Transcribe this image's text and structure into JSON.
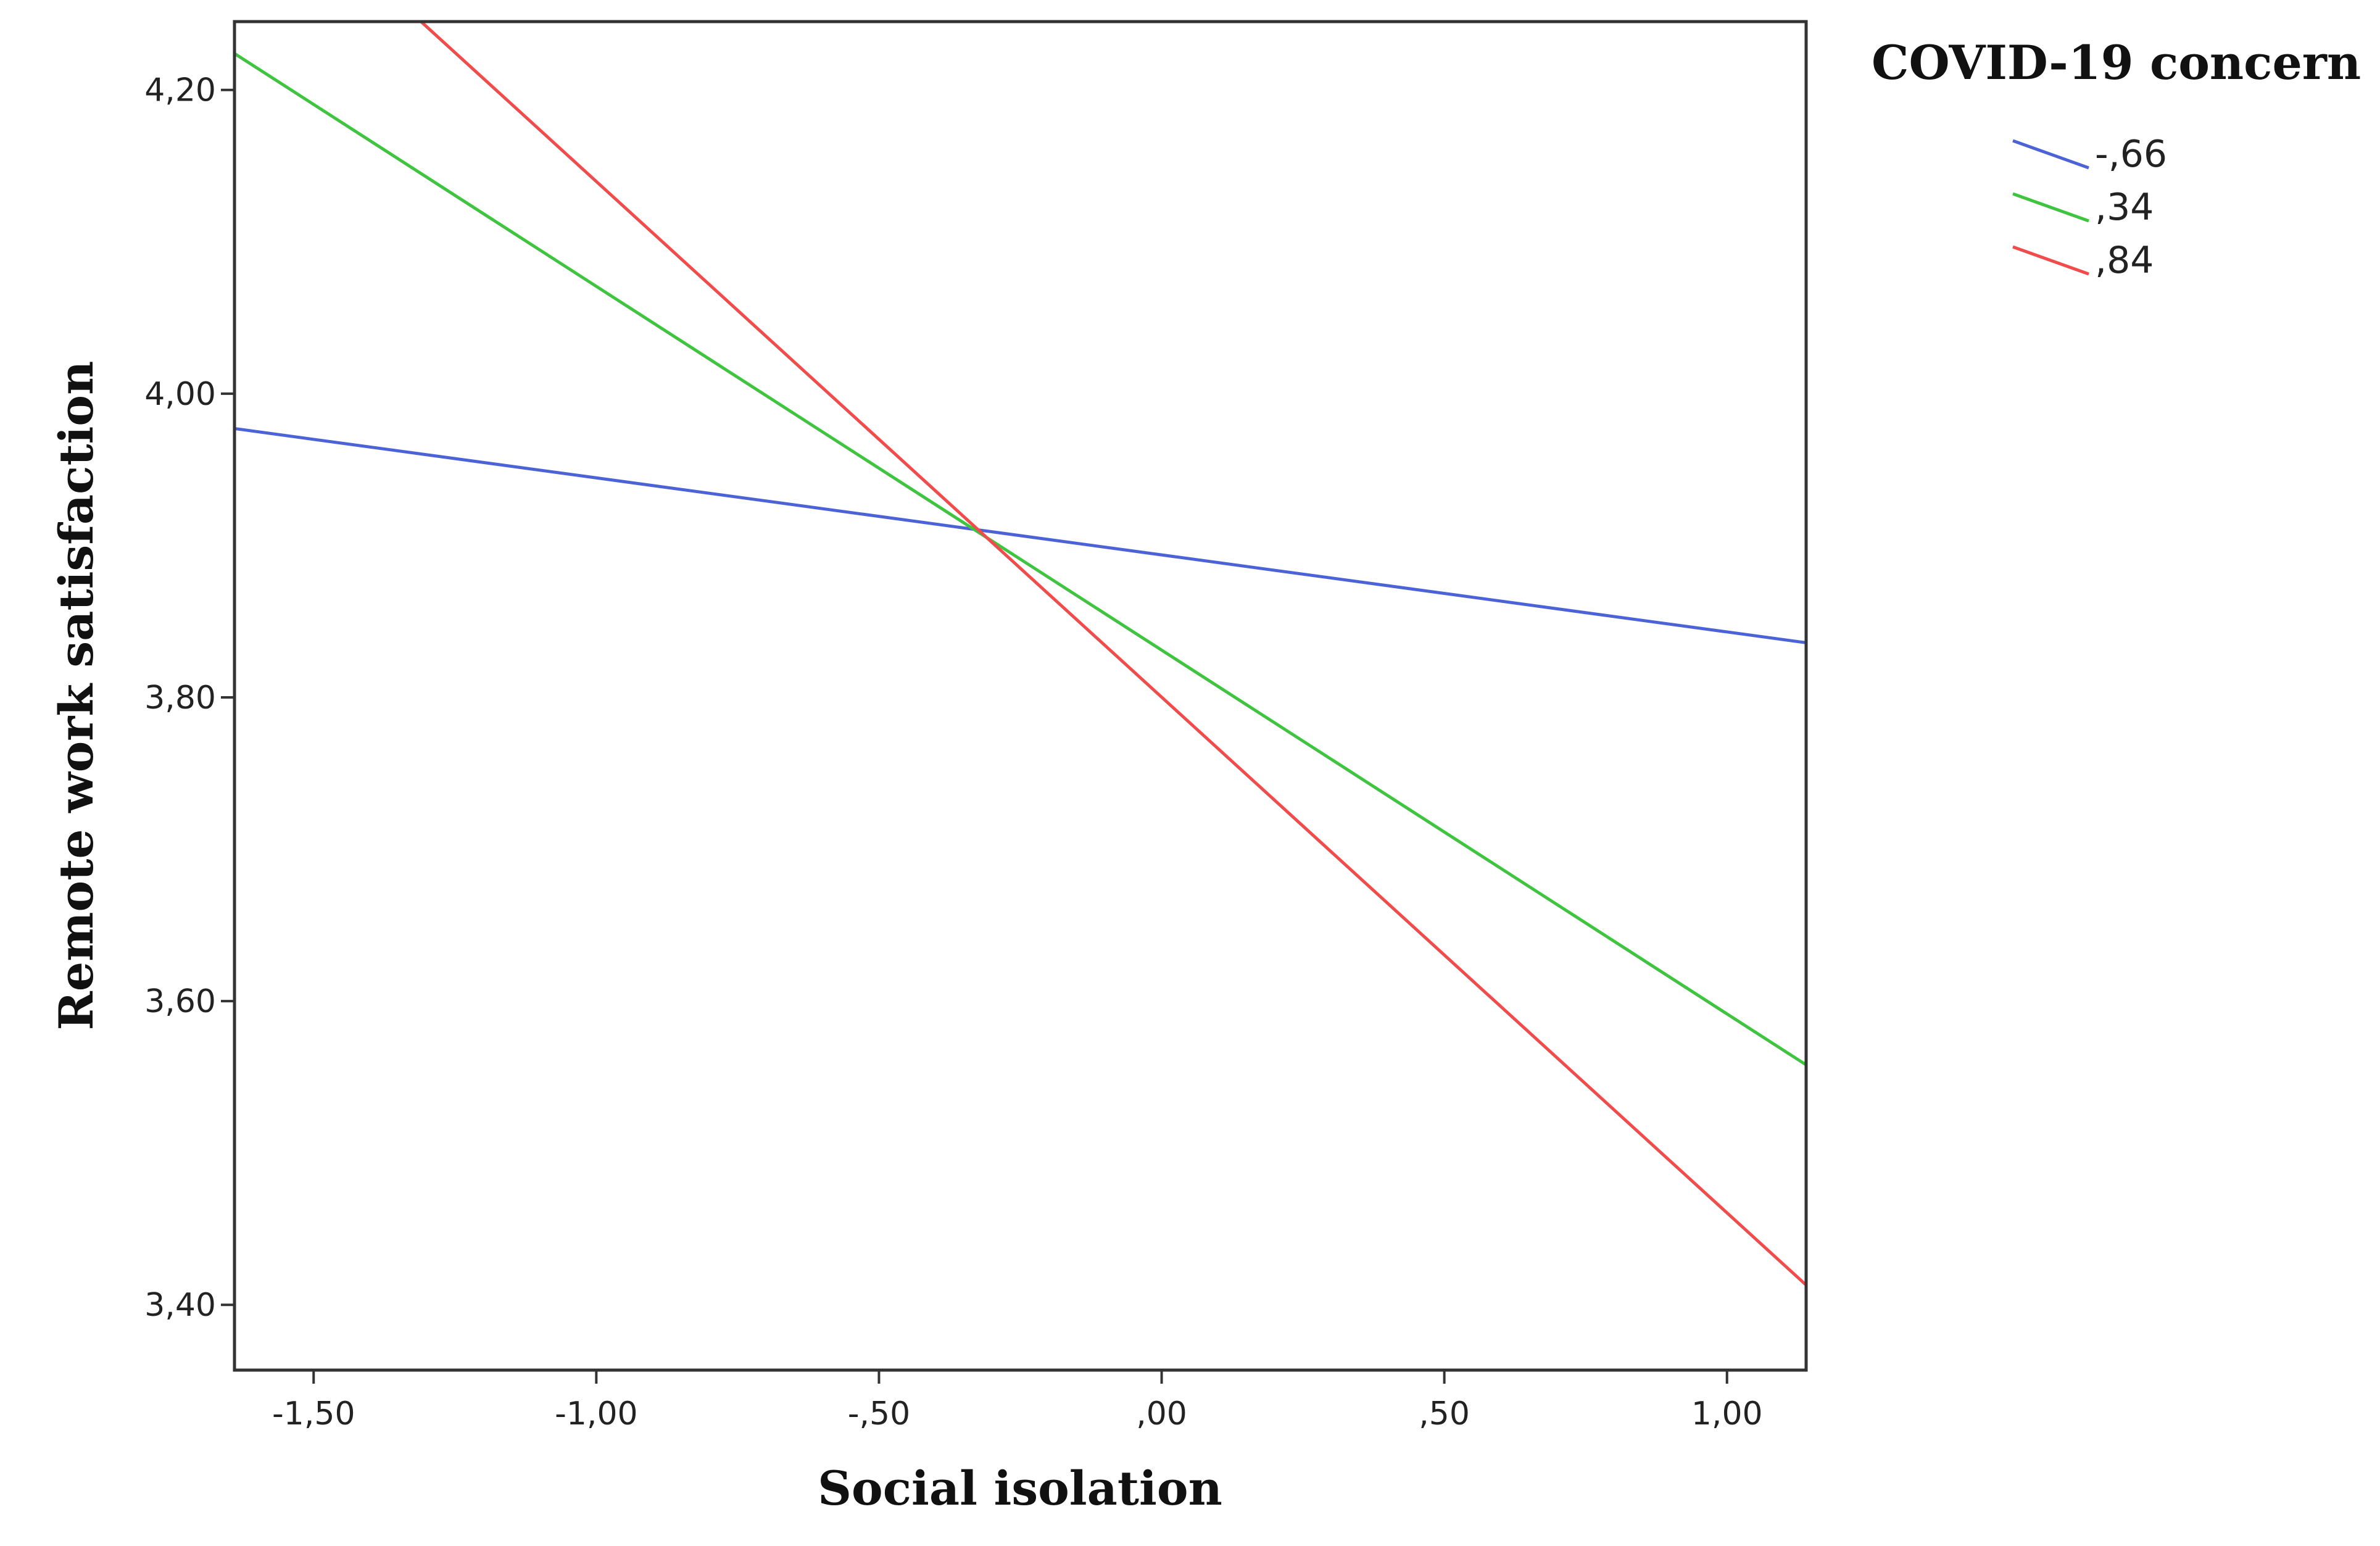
{
  "chart_data": {
    "type": "line",
    "title": "",
    "xlabel": "Social isolation",
    "ylabel": "Remote work satisfaction",
    "xlim": [
      -1.64,
      1.14
    ],
    "ylim": [
      3.357,
      4.245
    ],
    "xticks": [
      {
        "value": -1.5,
        "label": "-1,50"
      },
      {
        "value": -1.0,
        "label": "-1,00"
      },
      {
        "value": -0.5,
        "label": "-,50"
      },
      {
        "value": 0.0,
        "label": ",00"
      },
      {
        "value": 0.5,
        "label": ",50"
      },
      {
        "value": 1.0,
        "label": "1,00"
      }
    ],
    "yticks": [
      {
        "value": 3.4,
        "label": "3,40"
      },
      {
        "value": 3.6,
        "label": "3,60"
      },
      {
        "value": 3.8,
        "label": "3,80"
      },
      {
        "value": 4.0,
        "label": "4,00"
      },
      {
        "value": 4.2,
        "label": "4,20"
      }
    ],
    "grid": false,
    "legend": {
      "title": "COVID-19 concern",
      "placement": "top-right, outside plot"
    },
    "series": [
      {
        "name": "-,66",
        "color": "#4b63d6",
        "x": [
          -1.64,
          1.14
        ],
        "y": [
          3.977,
          3.836
        ]
      },
      {
        "name": ",34",
        "color": "#3fc43f",
        "x": [
          -1.64,
          1.14
        ],
        "y": [
          4.224,
          3.558
        ]
      },
      {
        "name": ",84",
        "color": "#f24b4b",
        "x": [
          -1.31,
          1.14
        ],
        "y": [
          4.245,
          3.413
        ]
      }
    ]
  }
}
